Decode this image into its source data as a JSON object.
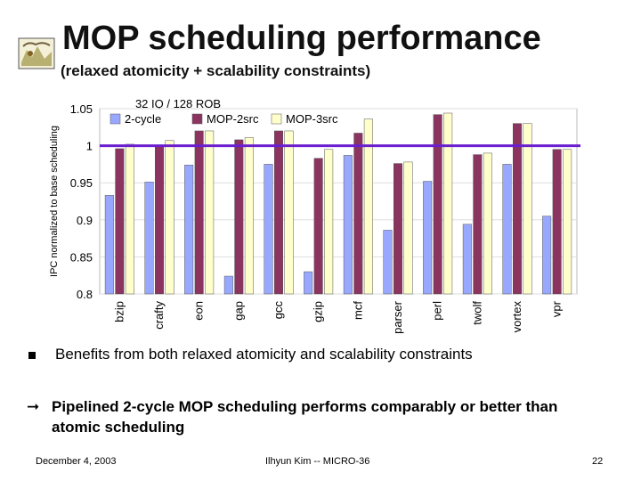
{
  "slide": {
    "title": "MOP scheduling performance",
    "subtitle": "(relaxed atomicity + scalability constraints)",
    "bullet1": "Benefits from both relaxed atomicity and scalability constraints",
    "bullet2": "Pipelined 2-cycle MOP scheduling performs comparably or better than atomic scheduling",
    "footer": {
      "date": "December 4, 2003",
      "author": "Ilhyun Kim -- MICRO-36",
      "page": "22"
    }
  },
  "colors": {
    "s1": "#99a8ff",
    "s2": "#8b3460",
    "s3": "#ffffcc",
    "baseline": "#6a1ed0",
    "plot_bg": "#ffffff"
  },
  "chart_data": {
    "type": "bar",
    "title": "32 IQ / 128 ROB",
    "xlabel": "",
    "ylabel": "IPC normalized to base scheduling",
    "ylim": [
      0.8,
      1.05
    ],
    "yticks": [
      0.8,
      0.85,
      0.9,
      0.95,
      1,
      1.05
    ],
    "ytick_labels": [
      "0.8",
      "0.85",
      "0.9",
      "0.95",
      "1",
      "1.05"
    ],
    "baseline": 1.0,
    "legend_position": "top",
    "categories": [
      "bzip",
      "crafty",
      "eon",
      "gap",
      "gcc",
      "gzip",
      "mcf",
      "parser",
      "perl",
      "twolf",
      "vortex",
      "vpr"
    ],
    "series": [
      {
        "name": "2-cycle",
        "values": [
          0.933,
          0.951,
          0.974,
          0.824,
          0.975,
          0.83,
          0.987,
          0.886,
          0.952,
          0.894,
          0.975,
          0.905
        ]
      },
      {
        "name": "MOP-2src",
        "values": [
          0.996,
          1.0,
          1.02,
          1.008,
          1.02,
          0.983,
          1.017,
          0.976,
          1.042,
          0.988,
          1.03,
          0.995
        ]
      },
      {
        "name": "MOP-3src",
        "values": [
          1.002,
          1.007,
          1.02,
          1.011,
          1.02,
          0.995,
          1.036,
          0.978,
          1.044,
          0.99,
          1.03,
          0.995
        ]
      }
    ]
  }
}
